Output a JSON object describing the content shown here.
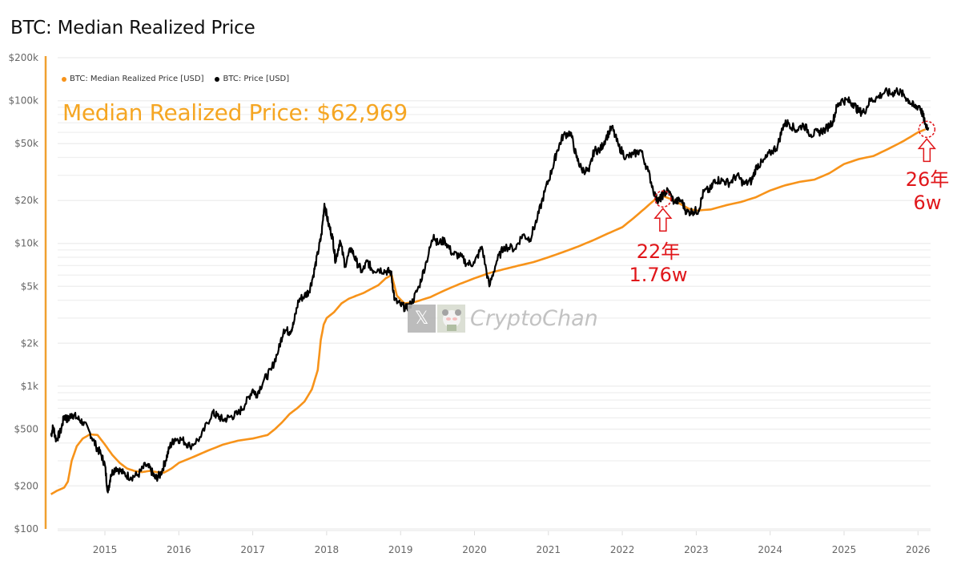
{
  "chart_data": {
    "type": "line",
    "title": "BTC: Median Realized Price",
    "highlight_label": "Median Realized Price: $62,969",
    "xlabel": "",
    "ylabel": "",
    "yscale": "log",
    "ylim": [
      100,
      200000
    ],
    "xlim": [
      2014.27,
      2026.17
    ],
    "y_ticks": [
      {
        "value": 100,
        "label": "$100"
      },
      {
        "value": 200,
        "label": "$200"
      },
      {
        "value": 500,
        "label": "$500"
      },
      {
        "value": 1000,
        "label": "$1k"
      },
      {
        "value": 2000,
        "label": "$2k"
      },
      {
        "value": 5000,
        "label": "$5k"
      },
      {
        "value": 10000,
        "label": "$10k"
      },
      {
        "value": 20000,
        "label": "$20k"
      },
      {
        "value": 50000,
        "label": "$50k"
      },
      {
        "value": 100000,
        "label": "$100k"
      },
      {
        "value": 200000,
        "label": "$200k"
      }
    ],
    "x_ticks": [
      {
        "value": 2015,
        "label": "2015"
      },
      {
        "value": 2016,
        "label": "2016"
      },
      {
        "value": 2017,
        "label": "2017"
      },
      {
        "value": 2018,
        "label": "2018"
      },
      {
        "value": 2019,
        "label": "2019"
      },
      {
        "value": 2020,
        "label": "2020"
      },
      {
        "value": 2021,
        "label": "2021"
      },
      {
        "value": 2022,
        "label": "2022"
      },
      {
        "value": 2023,
        "label": "2023"
      },
      {
        "value": 2024,
        "label": "2024"
      },
      {
        "value": 2025,
        "label": "2025"
      },
      {
        "value": 2026,
        "label": "2026"
      }
    ],
    "grid": true,
    "legend_position": "top-left",
    "series": [
      {
        "name": "BTC: Median Realized Price [USD]",
        "color": "#f7931a",
        "points": [
          [
            2014.27,
            175
          ],
          [
            2014.35,
            185
          ],
          [
            2014.45,
            195
          ],
          [
            2014.5,
            215
          ],
          [
            2014.55,
            300
          ],
          [
            2014.62,
            380
          ],
          [
            2014.7,
            430
          ],
          [
            2014.8,
            460
          ],
          [
            2014.9,
            455
          ],
          [
            2015.0,
            390
          ],
          [
            2015.1,
            330
          ],
          [
            2015.2,
            290
          ],
          [
            2015.3,
            265
          ],
          [
            2015.4,
            255
          ],
          [
            2015.5,
            250
          ],
          [
            2015.6,
            255
          ],
          [
            2015.7,
            250
          ],
          [
            2015.8,
            248
          ],
          [
            2015.9,
            265
          ],
          [
            2016.0,
            290
          ],
          [
            2016.2,
            320
          ],
          [
            2016.4,
            355
          ],
          [
            2016.6,
            390
          ],
          [
            2016.8,
            415
          ],
          [
            2017.0,
            430
          ],
          [
            2017.2,
            455
          ],
          [
            2017.3,
            500
          ],
          [
            2017.4,
            560
          ],
          [
            2017.5,
            640
          ],
          [
            2017.6,
            700
          ],
          [
            2017.7,
            780
          ],
          [
            2017.8,
            950
          ],
          [
            2017.88,
            1300
          ],
          [
            2017.92,
            2100
          ],
          [
            2017.96,
            2700
          ],
          [
            2018.0,
            3000
          ],
          [
            2018.1,
            3300
          ],
          [
            2018.2,
            3800
          ],
          [
            2018.3,
            4100
          ],
          [
            2018.4,
            4300
          ],
          [
            2018.5,
            4500
          ],
          [
            2018.6,
            4800
          ],
          [
            2018.7,
            5100
          ],
          [
            2018.8,
            5700
          ],
          [
            2018.88,
            6000
          ],
          [
            2018.95,
            4300
          ],
          [
            2019.05,
            3800
          ],
          [
            2019.2,
            3900
          ],
          [
            2019.4,
            4200
          ],
          [
            2019.6,
            4700
          ],
          [
            2019.8,
            5200
          ],
          [
            2020.0,
            5700
          ],
          [
            2020.2,
            6200
          ],
          [
            2020.4,
            6600
          ],
          [
            2020.6,
            7000
          ],
          [
            2020.8,
            7400
          ],
          [
            2021.0,
            8000
          ],
          [
            2021.2,
            8700
          ],
          [
            2021.4,
            9500
          ],
          [
            2021.6,
            10500
          ],
          [
            2021.8,
            11700
          ],
          [
            2022.0,
            13000
          ],
          [
            2022.15,
            15000
          ],
          [
            2022.3,
            17500
          ],
          [
            2022.45,
            20500
          ],
          [
            2022.55,
            21500
          ],
          [
            2022.7,
            20000
          ],
          [
            2022.9,
            17500
          ],
          [
            2023.0,
            17000
          ],
          [
            2023.2,
            17300
          ],
          [
            2023.4,
            18500
          ],
          [
            2023.6,
            19500
          ],
          [
            2023.8,
            21000
          ],
          [
            2024.0,
            23500
          ],
          [
            2024.2,
            25500
          ],
          [
            2024.4,
            27000
          ],
          [
            2024.6,
            28000
          ],
          [
            2024.8,
            31000
          ],
          [
            2025.0,
            36000
          ],
          [
            2025.2,
            39000
          ],
          [
            2025.4,
            41000
          ],
          [
            2025.6,
            46000
          ],
          [
            2025.8,
            52000
          ],
          [
            2026.0,
            60000
          ],
          [
            2026.1,
            62969
          ]
        ]
      },
      {
        "name": "BTC: Price [USD]",
        "color": "#000000",
        "points": [
          [
            2014.27,
            450
          ],
          [
            2014.3,
            520
          ],
          [
            2014.34,
            420
          ],
          [
            2014.4,
            480
          ],
          [
            2014.45,
            620
          ],
          [
            2014.5,
            580
          ],
          [
            2014.55,
            640
          ],
          [
            2014.62,
            600
          ],
          [
            2014.7,
            560
          ],
          [
            2014.8,
            470
          ],
          [
            2014.88,
            380
          ],
          [
            2014.95,
            330
          ],
          [
            2015.0,
            280
          ],
          [
            2015.04,
            180
          ],
          [
            2015.08,
            240
          ],
          [
            2015.15,
            270
          ],
          [
            2015.25,
            245
          ],
          [
            2015.35,
            230
          ],
          [
            2015.45,
            240
          ],
          [
            2015.55,
            280
          ],
          [
            2015.62,
            260
          ],
          [
            2015.68,
            225
          ],
          [
            2015.75,
            240
          ],
          [
            2015.82,
            300
          ],
          [
            2015.88,
            380
          ],
          [
            2015.95,
            430
          ],
          [
            2016.05,
            420
          ],
          [
            2016.15,
            380
          ],
          [
            2016.3,
            440
          ],
          [
            2016.45,
            650
          ],
          [
            2016.52,
            620
          ],
          [
            2016.6,
            580
          ],
          [
            2016.7,
            610
          ],
          [
            2016.8,
            640
          ],
          [
            2016.9,
            750
          ],
          [
            2017.0,
            950
          ],
          [
            2017.05,
            870
          ],
          [
            2017.15,
            1100
          ],
          [
            2017.25,
            1300
          ],
          [
            2017.35,
            1800
          ],
          [
            2017.42,
            2500
          ],
          [
            2017.5,
            2400
          ],
          [
            2017.55,
            2700
          ],
          [
            2017.62,
            4000
          ],
          [
            2017.7,
            4300
          ],
          [
            2017.76,
            4600
          ],
          [
            2017.82,
            6000
          ],
          [
            2017.88,
            8500
          ],
          [
            2017.93,
            11500
          ],
          [
            2017.97,
            19000
          ],
          [
            2018.02,
            14000
          ],
          [
            2018.08,
            11000
          ],
          [
            2018.12,
            7500
          ],
          [
            2018.18,
            10500
          ],
          [
            2018.25,
            7000
          ],
          [
            2018.33,
            9300
          ],
          [
            2018.4,
            7500
          ],
          [
            2018.48,
            6300
          ],
          [
            2018.55,
            7500
          ],
          [
            2018.62,
            6500
          ],
          [
            2018.7,
            6600
          ],
          [
            2018.8,
            6400
          ],
          [
            2018.87,
            6300
          ],
          [
            2018.92,
            4000
          ],
          [
            2019.0,
            3700
          ],
          [
            2019.08,
            3500
          ],
          [
            2019.15,
            3800
          ],
          [
            2019.25,
            5000
          ],
          [
            2019.35,
            7500
          ],
          [
            2019.45,
            11500
          ],
          [
            2019.5,
            10000
          ],
          [
            2019.6,
            10500
          ],
          [
            2019.7,
            8500
          ],
          [
            2019.8,
            8200
          ],
          [
            2019.9,
            7200
          ],
          [
            2020.0,
            7300
          ],
          [
            2020.1,
            9500
          ],
          [
            2020.2,
            5000
          ],
          [
            2020.3,
            7500
          ],
          [
            2020.4,
            9500
          ],
          [
            2020.55,
            9200
          ],
          [
            2020.65,
            11500
          ],
          [
            2020.75,
            10700
          ],
          [
            2020.85,
            15000
          ],
          [
            2020.95,
            23000
          ],
          [
            2021.05,
            33000
          ],
          [
            2021.12,
            45000
          ],
          [
            2021.2,
            57000
          ],
          [
            2021.3,
            60000
          ],
          [
            2021.38,
            40000
          ],
          [
            2021.45,
            33000
          ],
          [
            2021.55,
            32000
          ],
          [
            2021.62,
            45000
          ],
          [
            2021.7,
            45000
          ],
          [
            2021.78,
            55000
          ],
          [
            2021.86,
            65000
          ],
          [
            2021.95,
            48000
          ],
          [
            2022.05,
            40000
          ],
          [
            2022.15,
            42000
          ],
          [
            2022.25,
            45000
          ],
          [
            2022.35,
            32000
          ],
          [
            2022.45,
            21000
          ],
          [
            2022.5,
            20000
          ],
          [
            2022.55,
            22000
          ],
          [
            2022.62,
            23500
          ],
          [
            2022.7,
            19500
          ],
          [
            2022.8,
            20000
          ],
          [
            2022.87,
            16500
          ],
          [
            2022.95,
            16800
          ],
          [
            2023.03,
            17000
          ],
          [
            2023.1,
            23000
          ],
          [
            2023.2,
            24000
          ],
          [
            2023.25,
            28000
          ],
          [
            2023.35,
            27500
          ],
          [
            2023.45,
            26500
          ],
          [
            2023.55,
            30000
          ],
          [
            2023.65,
            26000
          ],
          [
            2023.75,
            27500
          ],
          [
            2023.82,
            35000
          ],
          [
            2023.9,
            37000
          ],
          [
            2024.0,
            43000
          ],
          [
            2024.1,
            48000
          ],
          [
            2024.18,
            68000
          ],
          [
            2024.25,
            70000
          ],
          [
            2024.35,
            62000
          ],
          [
            2024.45,
            68000
          ],
          [
            2024.55,
            58000
          ],
          [
            2024.65,
            60000
          ],
          [
            2024.75,
            63000
          ],
          [
            2024.85,
            72000
          ],
          [
            2024.9,
            90000
          ],
          [
            2024.96,
            100000
          ],
          [
            2025.05,
            100000
          ],
          [
            2025.12,
            96000
          ],
          [
            2025.2,
            84000
          ],
          [
            2025.27,
            83000
          ],
          [
            2025.35,
            100000
          ],
          [
            2025.45,
            105000
          ],
          [
            2025.55,
            115000
          ],
          [
            2025.65,
            112000
          ],
          [
            2025.72,
            118000
          ],
          [
            2025.8,
            110000
          ],
          [
            2025.88,
            100000
          ],
          [
            2025.95,
            90000
          ],
          [
            2026.02,
            92000
          ],
          [
            2026.07,
            78000
          ],
          [
            2026.1,
            68000
          ],
          [
            2026.14,
            65000
          ]
        ]
      }
    ],
    "annotations": [
      {
        "text_line1": "22年",
        "text_line2": "1.76w",
        "x": 2022.55,
        "value": 20500,
        "color": "#e0161a"
      },
      {
        "text_line1": "26年",
        "text_line2": "6w",
        "x": 2026.12,
        "value": 63000,
        "color": "#e0161a"
      }
    ]
  },
  "legend": [
    {
      "label": "BTC: Median Realized Price [USD]",
      "color": "#f7931a"
    },
    {
      "label": "BTC: Price [USD]",
      "color": "#000000"
    }
  ],
  "watermark": {
    "icon": "x-logo",
    "text": "CryptoChan"
  },
  "colors": {
    "accent": "#f5a623",
    "axis_line": "#f0a030",
    "grid": "#ececec",
    "annotation": "#e0161a"
  }
}
